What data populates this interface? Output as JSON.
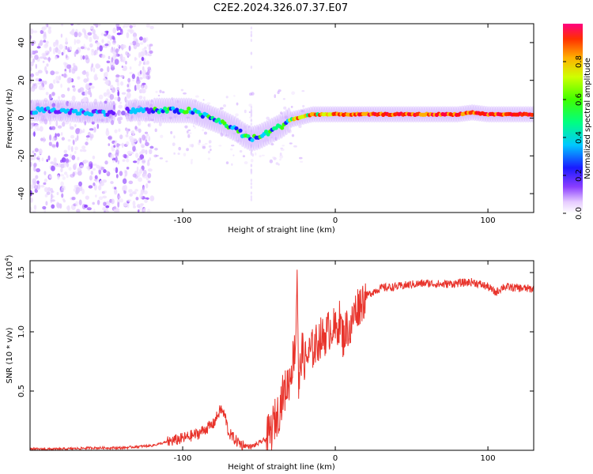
{
  "title": "C2E2.2024.326.07.37.E07",
  "chart_data": [
    {
      "type": "heatmap",
      "xlabel": "Height of straight line (km)",
      "ylabel": "Frequency (Hz)",
      "xlim": [
        -200,
        130
      ],
      "ylim": [
        -50,
        50
      ],
      "xticks": [
        -100,
        0,
        100
      ],
      "yticks": [
        -40,
        -20,
        0,
        20,
        40
      ],
      "ridge": {
        "x": [
          -195,
          -180,
          -165,
          -150,
          -135,
          -120,
          -105,
          -95,
          -85,
          -75,
          -65,
          -60,
          -55,
          -50,
          -45,
          -40,
          -35,
          -30,
          -25,
          -20,
          -15,
          -10,
          -5,
          0,
          10,
          30,
          50,
          80,
          90,
          100,
          110,
          130
        ],
        "y": [
          4,
          4,
          3,
          3,
          4,
          4,
          4,
          4,
          1,
          -2,
          -6,
          -9,
          -11,
          -10,
          -8,
          -6,
          -4,
          -1,
          0,
          1,
          2,
          2,
          2,
          2,
          2,
          2,
          2,
          2,
          3,
          2,
          2,
          2
        ]
      },
      "colorbar": {
        "label": "Normalized spectral amplitude",
        "range": [
          0,
          1
        ],
        "ticks": [
          "0.0",
          "0.2",
          "0.4",
          "0.6",
          "0.8"
        ]
      }
    },
    {
      "type": "line",
      "xlabel": "Height of straight line (km)",
      "ylabel": "SNR (10 * v/v)",
      "multiplier_label": "(x10",
      "multiplier_exp": "4",
      "multiplier_close": ")",
      "xlim": [
        -200,
        130
      ],
      "ylim": [
        0,
        1.6
      ],
      "xticks": [
        -100,
        0,
        100
      ],
      "yticks": [
        "0.5",
        "1.0",
        "1.5"
      ],
      "color": "#e8332b",
      "x": [
        -200,
        -180,
        -160,
        -140,
        -130,
        -120,
        -110,
        -100,
        -90,
        -85,
        -80,
        -75,
        -72,
        -70,
        -65,
        -60,
        -55,
        -50,
        -45,
        -42,
        -40,
        -37,
        -35,
        -33,
        -30,
        -28,
        -26,
        -25,
        -24,
        -22,
        -20,
        -18,
        -15,
        -12,
        -10,
        -8,
        -5,
        -2,
        0,
        3,
        5,
        8,
        10,
        12,
        15,
        20,
        25,
        30,
        40,
        50,
        60,
        70,
        80,
        90,
        100,
        105,
        110,
        120,
        130
      ],
      "y": [
        0.01,
        0.01,
        0.02,
        0.02,
        0.03,
        0.04,
        0.07,
        0.1,
        0.14,
        0.18,
        0.22,
        0.35,
        0.28,
        0.15,
        0.08,
        0.04,
        0.03,
        0.06,
        0.1,
        0.16,
        0.25,
        0.32,
        0.45,
        0.5,
        0.6,
        0.75,
        0.9,
        1.55,
        0.5,
        0.85,
        0.75,
        0.8,
        0.85,
        0.9,
        0.95,
        0.95,
        1.0,
        1.05,
        1.0,
        1.1,
        0.95,
        1.05,
        1.0,
        1.15,
        1.22,
        1.3,
        1.34,
        1.37,
        1.38,
        1.4,
        1.41,
        1.4,
        1.41,
        1.42,
        1.38,
        1.33,
        1.38,
        1.37,
        1.36
      ]
    }
  ]
}
